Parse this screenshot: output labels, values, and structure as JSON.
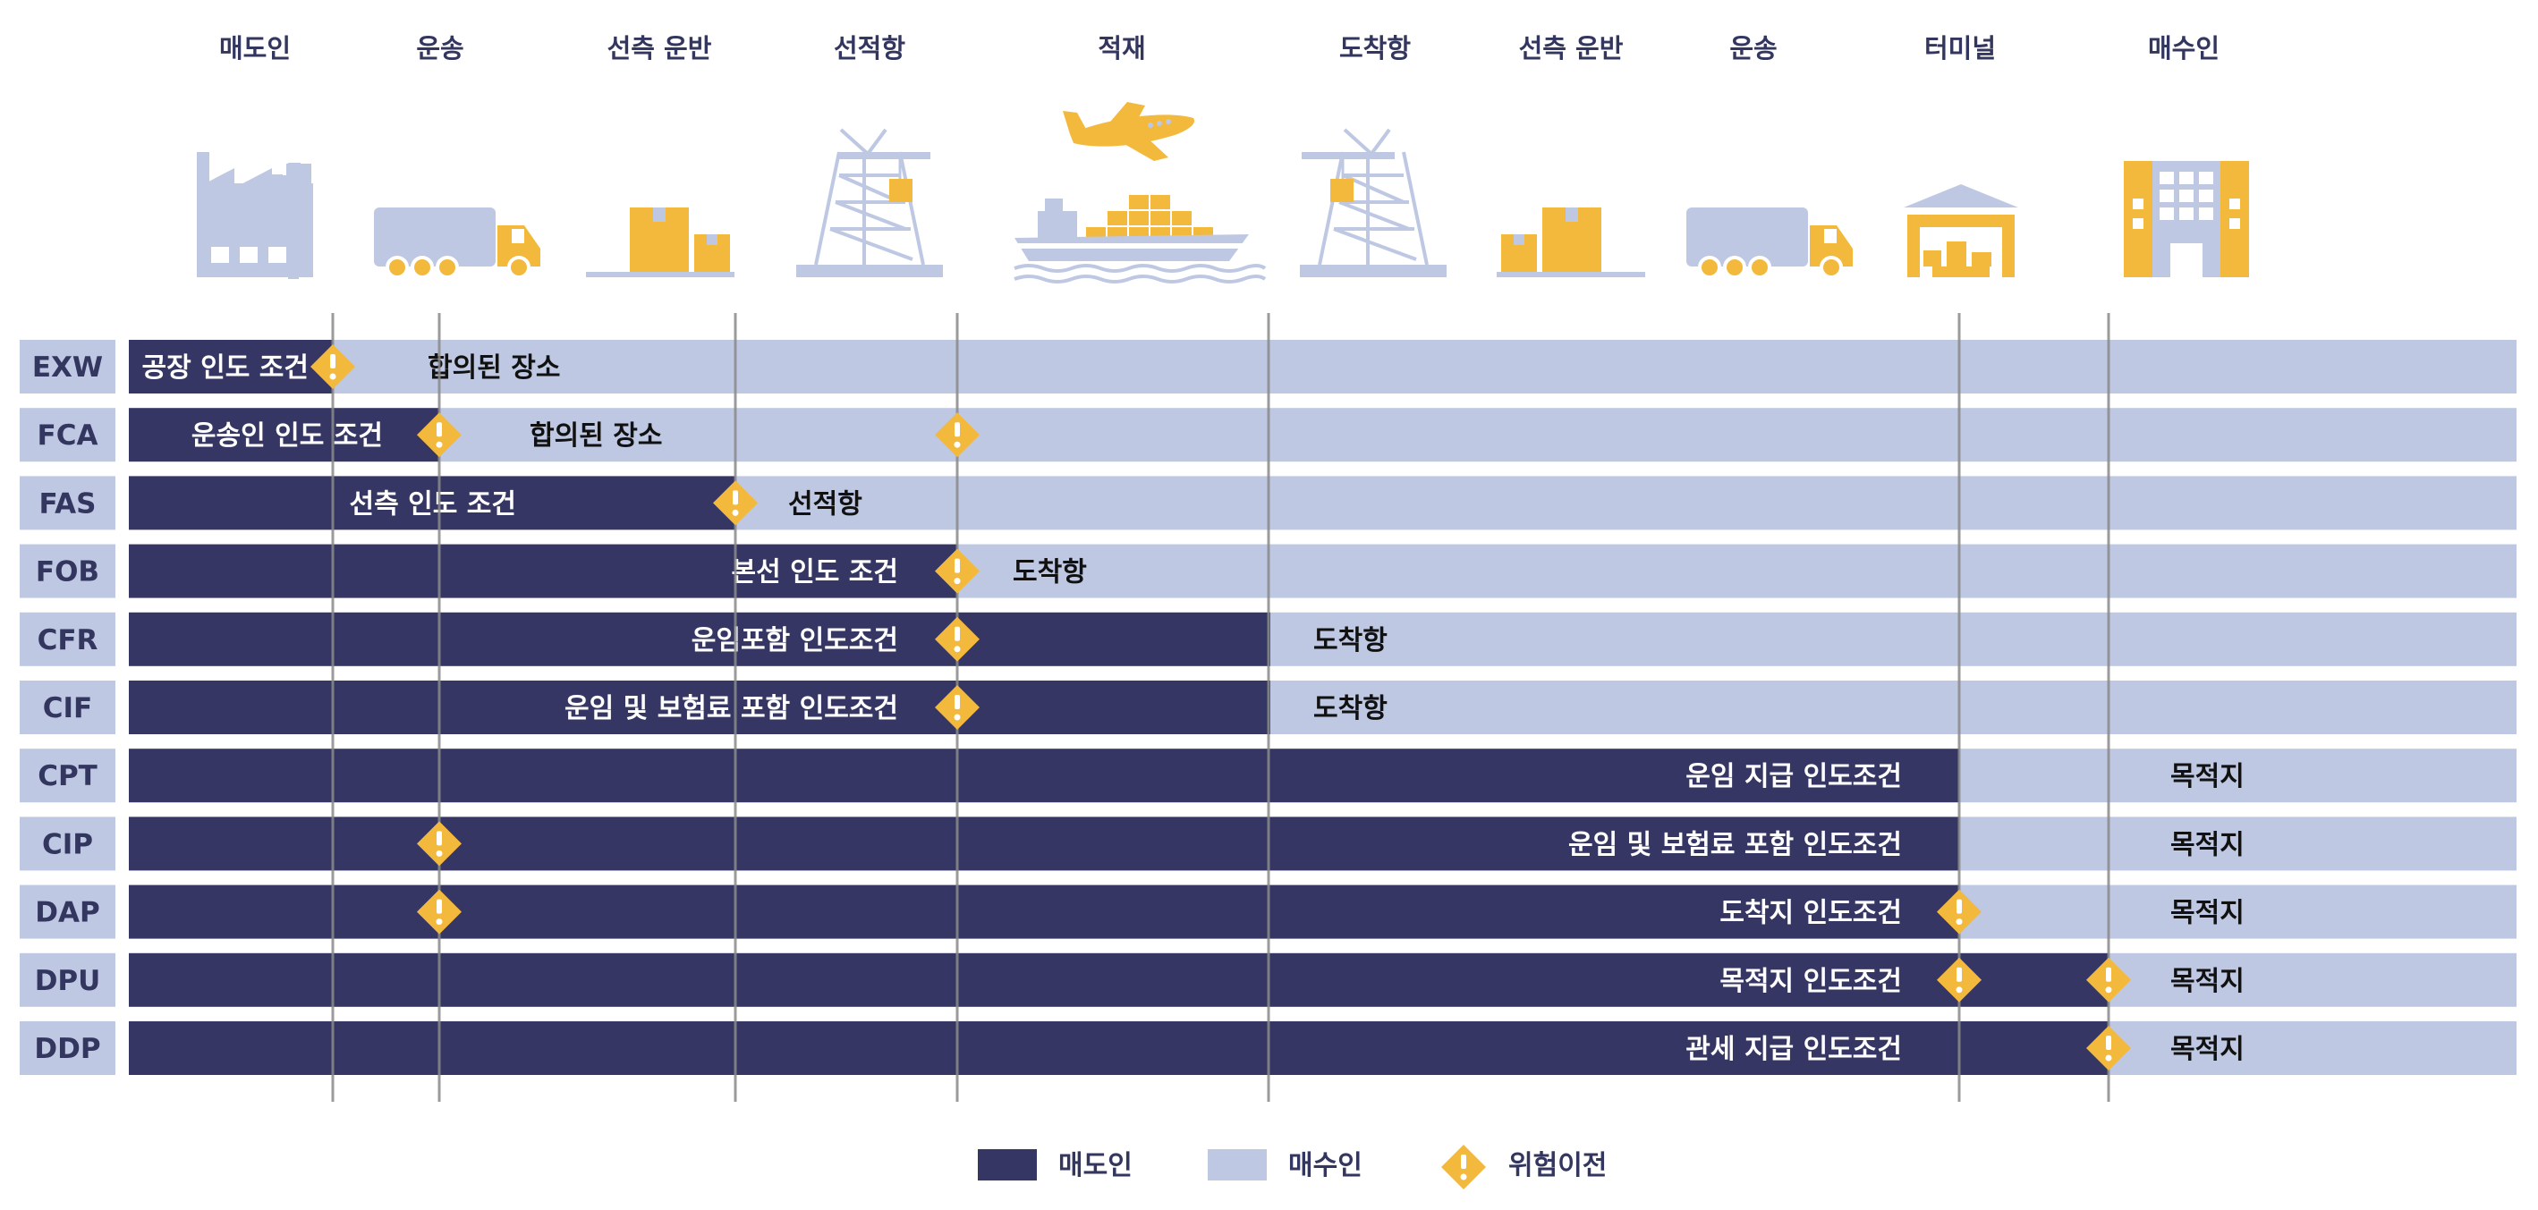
{
  "colors": {
    "seller": "#353663",
    "buyer": "#bec8e3",
    "risk": "#f3b93c",
    "icon_light": "#bec8e3",
    "icon_accent": "#f3b93c",
    "divider": "#8a8a8a",
    "text_dark": "#33365e"
  },
  "stages": [
    {
      "label": "매도인",
      "icon": "factory-icon"
    },
    {
      "label": "운송",
      "icon": "truck-icon"
    },
    {
      "label": "선측 운반",
      "icon": "boxes-icon"
    },
    {
      "label": "선적항",
      "icon": "port-crane-icon"
    },
    {
      "label": "적재",
      "icon": "ship-plane-icon"
    },
    {
      "label": "도착항",
      "icon": "port-crane-icon"
    },
    {
      "label": "선측 운반",
      "icon": "boxes-icon"
    },
    {
      "label": "운송",
      "icon": "truck-icon"
    },
    {
      "label": "터미널",
      "icon": "warehouse-icon"
    },
    {
      "label": "매수인",
      "icon": "building-icon"
    }
  ],
  "terms": [
    {
      "code": "EXW",
      "seller_label": "공장 인도 조건",
      "buyer_label": "합의된 장소"
    },
    {
      "code": "FCA",
      "seller_label": "운송인 인도 조건",
      "buyer_label": "합의된 장소"
    },
    {
      "code": "FAS",
      "seller_label": "선측 인도 조건",
      "buyer_label": "선적항"
    },
    {
      "code": "FOB",
      "seller_label": "본선 인도 조건",
      "buyer_label": "도착항"
    },
    {
      "code": "CFR",
      "seller_label": "운임포함 인도조건",
      "buyer_label": "도착항"
    },
    {
      "code": "CIF",
      "seller_label": "운임 및 보험료 포함 인도조건",
      "buyer_label": "도착항"
    },
    {
      "code": "CPT",
      "seller_label": "운임 지급 인도조건",
      "buyer_label": "목적지"
    },
    {
      "code": "CIP",
      "seller_label": "운임 및 보험료 포함 인도조건",
      "buyer_label": "목적지"
    },
    {
      "code": "DAP",
      "seller_label": "도착지 인도조건",
      "buyer_label": "목적지"
    },
    {
      "code": "DPU",
      "seller_label": "목적지 인도조건",
      "buyer_label": "목적지"
    },
    {
      "code": "DDP",
      "seller_label": "관세 지급 인도조건",
      "buyer_label": "목적지"
    }
  ],
  "legend": {
    "seller": "매도인",
    "buyer": "매수인",
    "risk": "위험이전"
  }
}
